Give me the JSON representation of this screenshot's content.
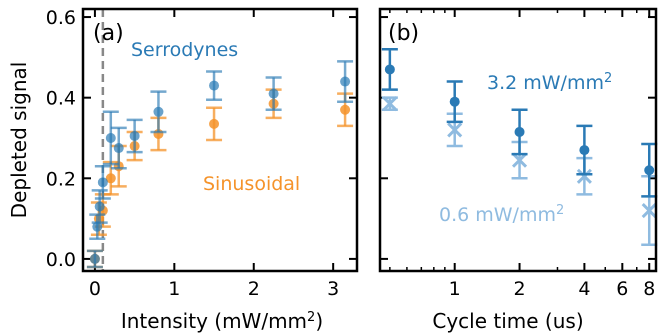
{
  "colors": {
    "serrodynes": "#2a7ab5",
    "sinusoidal": "#f5932a",
    "high_power": "#2a7ab5",
    "low_power": "#8fbbe0",
    "dashed_line": "#888888",
    "axis": "#000000"
  },
  "chart_data": [
    {
      "type": "scatter",
      "panel_label": "(a)",
      "xlabel": "Intensity (mW/mm",
      "xlabel_sup": "2",
      "xlabel_close": ")",
      "ylabel": "Depleted signal",
      "xlim": [
        -0.15,
        3.3
      ],
      "ylim": [
        -0.03,
        0.62
      ],
      "xticks": [
        0,
        1,
        2,
        3
      ],
      "xtick_labels": [
        "0",
        "1",
        "2",
        "3"
      ],
      "yticks": [
        0.0,
        0.2,
        0.4,
        0.6
      ],
      "ytick_labels": [
        "0.0",
        "0.2",
        "0.4",
        "0.6"
      ],
      "vline_x": 0.1,
      "series": [
        {
          "name": "Serrodynes",
          "label_parts": [
            "Serrodynes",
            "",
            ""
          ],
          "color_key": "serrodynes",
          "marker": "circle",
          "points": [
            {
              "x": 0.0,
              "y": 0.0,
              "err": 0.02
            },
            {
              "x": 0.03,
              "y": 0.08,
              "err": 0.03
            },
            {
              "x": 0.06,
              "y": 0.13,
              "err": 0.04
            },
            {
              "x": 0.1,
              "y": 0.19,
              "err": 0.04
            },
            {
              "x": 0.2,
              "y": 0.3,
              "err": 0.065
            },
            {
              "x": 0.3,
              "y": 0.275,
              "err": 0.05
            },
            {
              "x": 0.5,
              "y": 0.305,
              "err": 0.04
            },
            {
              "x": 0.8,
              "y": 0.365,
              "err": 0.05
            },
            {
              "x": 1.5,
              "y": 0.43,
              "err": 0.035
            },
            {
              "x": 2.25,
              "y": 0.41,
              "err": 0.04
            },
            {
              "x": 3.15,
              "y": 0.44,
              "err": 0.05
            }
          ]
        },
        {
          "name": "Sinusoidal",
          "label_parts": [
            "Sinusoidal",
            "",
            ""
          ],
          "color_key": "sinusoidal",
          "marker": "circle",
          "points": [
            {
              "x": 0.0,
              "y": 0.0,
              "err": 0.02
            },
            {
              "x": 0.05,
              "y": 0.1,
              "err": 0.04
            },
            {
              "x": 0.1,
              "y": 0.12,
              "err": 0.04
            },
            {
              "x": 0.2,
              "y": 0.2,
              "err": 0.04
            },
            {
              "x": 0.3,
              "y": 0.23,
              "err": 0.05
            },
            {
              "x": 0.5,
              "y": 0.28,
              "err": 0.035
            },
            {
              "x": 0.8,
              "y": 0.31,
              "err": 0.04
            },
            {
              "x": 1.5,
              "y": 0.335,
              "err": 0.04
            },
            {
              "x": 2.25,
              "y": 0.385,
              "err": 0.035
            },
            {
              "x": 3.15,
              "y": 0.37,
              "err": 0.04
            }
          ]
        }
      ]
    },
    {
      "type": "scatter",
      "panel_label": "(b)",
      "xlabel": "Cycle time (us)",
      "xscale": "log",
      "xlim": [
        0.45,
        8.6
      ],
      "ylim": [
        -0.03,
        0.62
      ],
      "xticks": [
        1,
        2,
        4,
        6,
        8
      ],
      "xtick_labels": [
        "1",
        "2",
        "4",
        "6",
        "8"
      ],
      "yticks": [
        0.0,
        0.2,
        0.4,
        0.6
      ],
      "series": [
        {
          "name": "3.2 mW/mm2",
          "label_parts": [
            "3.2 mW/mm",
            "2",
            ""
          ],
          "color_key": "high_power",
          "marker": "circle",
          "points": [
            {
              "x": 0.5,
              "y": 0.47,
              "err": 0.05
            },
            {
              "x": 1.0,
              "y": 0.39,
              "err": 0.05
            },
            {
              "x": 2.0,
              "y": 0.315,
              "err": 0.055
            },
            {
              "x": 4.0,
              "y": 0.27,
              "err": 0.06
            },
            {
              "x": 8.0,
              "y": 0.22,
              "err": 0.065
            }
          ]
        },
        {
          "name": "0.6 mW/mm2",
          "label_parts": [
            "0.6 mW/mm",
            "2",
            ""
          ],
          "color_key": "low_power",
          "marker": "x",
          "points": [
            {
              "x": 0.5,
              "y": 0.385,
              "err": 0.015
            },
            {
              "x": 1.0,
              "y": 0.32,
              "err": 0.04
            },
            {
              "x": 2.0,
              "y": 0.245,
              "err": 0.045
            },
            {
              "x": 4.0,
              "y": 0.205,
              "err": 0.045
            },
            {
              "x": 8.0,
              "y": 0.12,
              "err": 0.085
            }
          ]
        }
      ]
    }
  ]
}
